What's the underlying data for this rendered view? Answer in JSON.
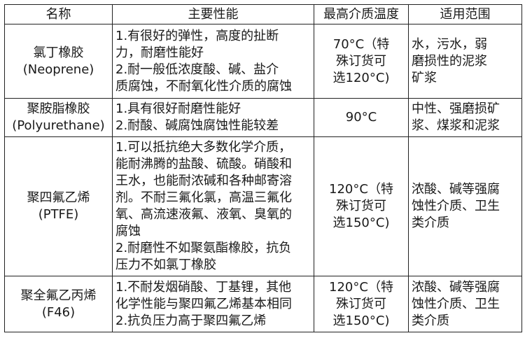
{
  "headers": [
    "名称",
    "主要性能",
    "最高介质温度",
    "适用范围"
  ],
  "rows": [
    {
      "name": [
        "氯丁橡胶",
        "(Neoprene)"
      ],
      "performance": [
        "1.有很好的弹性，高度的扯断",
        "力，耐磨性能好",
        "2.耐一般低浓度酸、碱、盐介",
        "质腐蚀，不耐氧化性介质的腐蚀"
      ],
      "temperature": [
        "70°C（特",
        "殊订货可",
        "选120°C)"
      ],
      "range": [
        "水，污水，弱",
        "磨损性的泥浆",
        "矿浆"
      ]
    },
    {
      "name": [
        "聚胺脂橡胶",
        "(Polyurethane)"
      ],
      "performance": [
        "1.具有很好耐磨性能好",
        "2.耐酸、碱腐蚀腐蚀性能较差"
      ],
      "temperature": [
        "90°C"
      ],
      "range": [
        "中性、强磨损矿",
        "浆、煤浆和泥浆"
      ]
    },
    {
      "name": [
        "聚四氟乙烯",
        "(PTFE)"
      ],
      "performance": [
        "1.可以抵抗绝大多数化学介质，",
        "能耐沸腾的盐酸、硫酸。硝酸和",
        "王水，也能耐浓碱和各种邮寄溶",
        "剂。不耐三氟化氯，高温三氟化",
        "氧、高流速液氟、液氧、臭氧的",
        "腐蚀",
        "2.耐磨性不如聚氨酯橡胶，抗负",
        "压力不如氯丁橡胶"
      ],
      "temperature": [
        "120°C（特",
        "殊订货可",
        "选150°C)"
      ],
      "range": [
        "浓酸、碱等强腐",
        "蚀性介质、卫生",
        "类介质"
      ]
    },
    {
      "name": [
        "聚全氟乙丙烯",
        "(F46)"
      ],
      "performance": [
        "1.不耐发烟硝酸、丁基锂，其他",
        "化学性能与聚四氟乙烯基本相同",
        "2.抗负压力高于聚四氟乙烯"
      ],
      "temperature": [
        "120°C（特",
        "殊订货可",
        "选150°C)"
      ],
      "range": [
        "浓酸、碱等强腐",
        "蚀性介质、卫生",
        "类介质"
      ]
    }
  ]
}
